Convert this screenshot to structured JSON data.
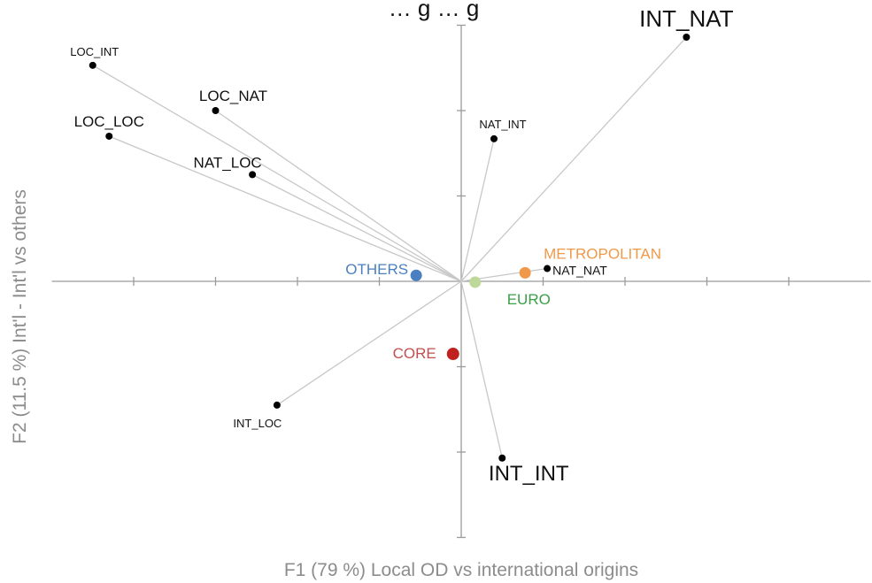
{
  "chart_data": {
    "type": "scatter",
    "title": "… g … g",
    "xlabel": "F1 (79 %) Local OD vs international origins",
    "ylabel": "F2 (11.5 %) Int'l - Int'l vs others",
    "xlim": [
      -5,
      5
    ],
    "ylim": [
      -3,
      3
    ],
    "grid": false,
    "variables": [
      {
        "name": "INT_NAT",
        "x": 2.75,
        "y": 2.86
      },
      {
        "name": "LOC_INT",
        "x": -4.5,
        "y": 2.53
      },
      {
        "name": "LOC_NAT",
        "x": -3.0,
        "y": 2.0
      },
      {
        "name": "LOC_LOC",
        "x": -4.3,
        "y": 1.7
      },
      {
        "name": "NAT_INT",
        "x": 0.4,
        "y": 1.67
      },
      {
        "name": "NAT_LOC",
        "x": -2.55,
        "y": 1.25
      },
      {
        "name": "NAT_NAT",
        "x": 1.05,
        "y": 0.15
      },
      {
        "name": "INT_LOC",
        "x": -2.25,
        "y": -1.45
      },
      {
        "name": "INT_INT",
        "x": 0.5,
        "y": -2.07
      }
    ],
    "groups": [
      {
        "name": "OTHERS",
        "x": -0.55,
        "y": 0.07,
        "color": "#4a7fc1"
      },
      {
        "name": "METROPOLITAN",
        "x": 0.78,
        "y": 0.1,
        "color": "#f0994a"
      },
      {
        "name": "EURO",
        "x": 0.17,
        "y": -0.01,
        "color": "#bcd99a",
        "label_color": "#3aa048"
      },
      {
        "name": "CORE",
        "x": -0.1,
        "y": -0.85,
        "color": "#c0201e",
        "label_color": "#c0504d"
      }
    ]
  }
}
